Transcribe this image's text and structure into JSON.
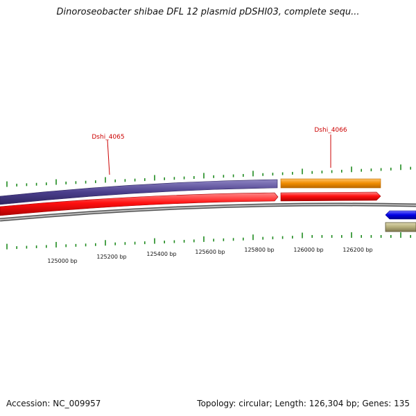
{
  "title": "Dinoroseobacter shibae DFL 12 plasmid pDSHI03, complete sequ...",
  "footer": {
    "accession": "Accession: NC_009957",
    "summary": "Topology: circular; Length: 126,304 bp; Genes: 135"
  },
  "genes": [
    {
      "label": "Dshi_4065"
    },
    {
      "label": "Dshi_4066"
    }
  ],
  "scale": {
    "tick_labels": [
      "125000 bp",
      "125200 bp",
      "125400 bp",
      "125600 bp",
      "125800 bp",
      "126000 bp",
      "126200 bp"
    ]
  },
  "colors": {
    "cds_forward": "#ff0000",
    "gene_purple": "#4b3f8c",
    "gene_orange": "#f08c00",
    "cds_reverse": "#0000e6",
    "misc_feature": "#b5ae7a",
    "backbone": "#888888",
    "tick": "#1e8a1e",
    "label": "#cc0000"
  }
}
